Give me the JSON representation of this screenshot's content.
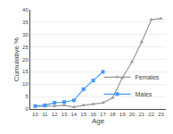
{
  "chart_data": {
    "type": "line",
    "xlabel": "Age",
    "ylabel": "Cumulative %",
    "series": [
      {
        "name": "Females",
        "color": "#999999",
        "marker": "triangle-up",
        "x": [
          10,
          11,
          12,
          13,
          14,
          15,
          16,
          17,
          18,
          19,
          20,
          21,
          22,
          23
        ],
        "values": [
          1.0,
          1.0,
          1.2,
          1.5,
          0.8,
          1.5,
          2.0,
          2.5,
          4.5,
          12.5,
          19.0,
          27.0,
          36.0,
          36.5
        ]
      },
      {
        "name": "Males",
        "color": "#4499ff",
        "marker": "square",
        "x": [
          10,
          11,
          12,
          13,
          14,
          15,
          16,
          17
        ],
        "values": [
          1.2,
          1.5,
          2.5,
          2.8,
          3.5,
          8.0,
          11.5,
          15.0
        ]
      }
    ],
    "xlim": [
      9.5,
      23.5
    ],
    "xticks": [
      10,
      11,
      12,
      13,
      14,
      15,
      16,
      17,
      18,
      19,
      20,
      21,
      22,
      23
    ],
    "ylim": [
      0,
      40
    ],
    "yticks": [
      0,
      5,
      10,
      15,
      20,
      25,
      30,
      35,
      40
    ],
    "grid": "y",
    "legend": "lower right"
  }
}
